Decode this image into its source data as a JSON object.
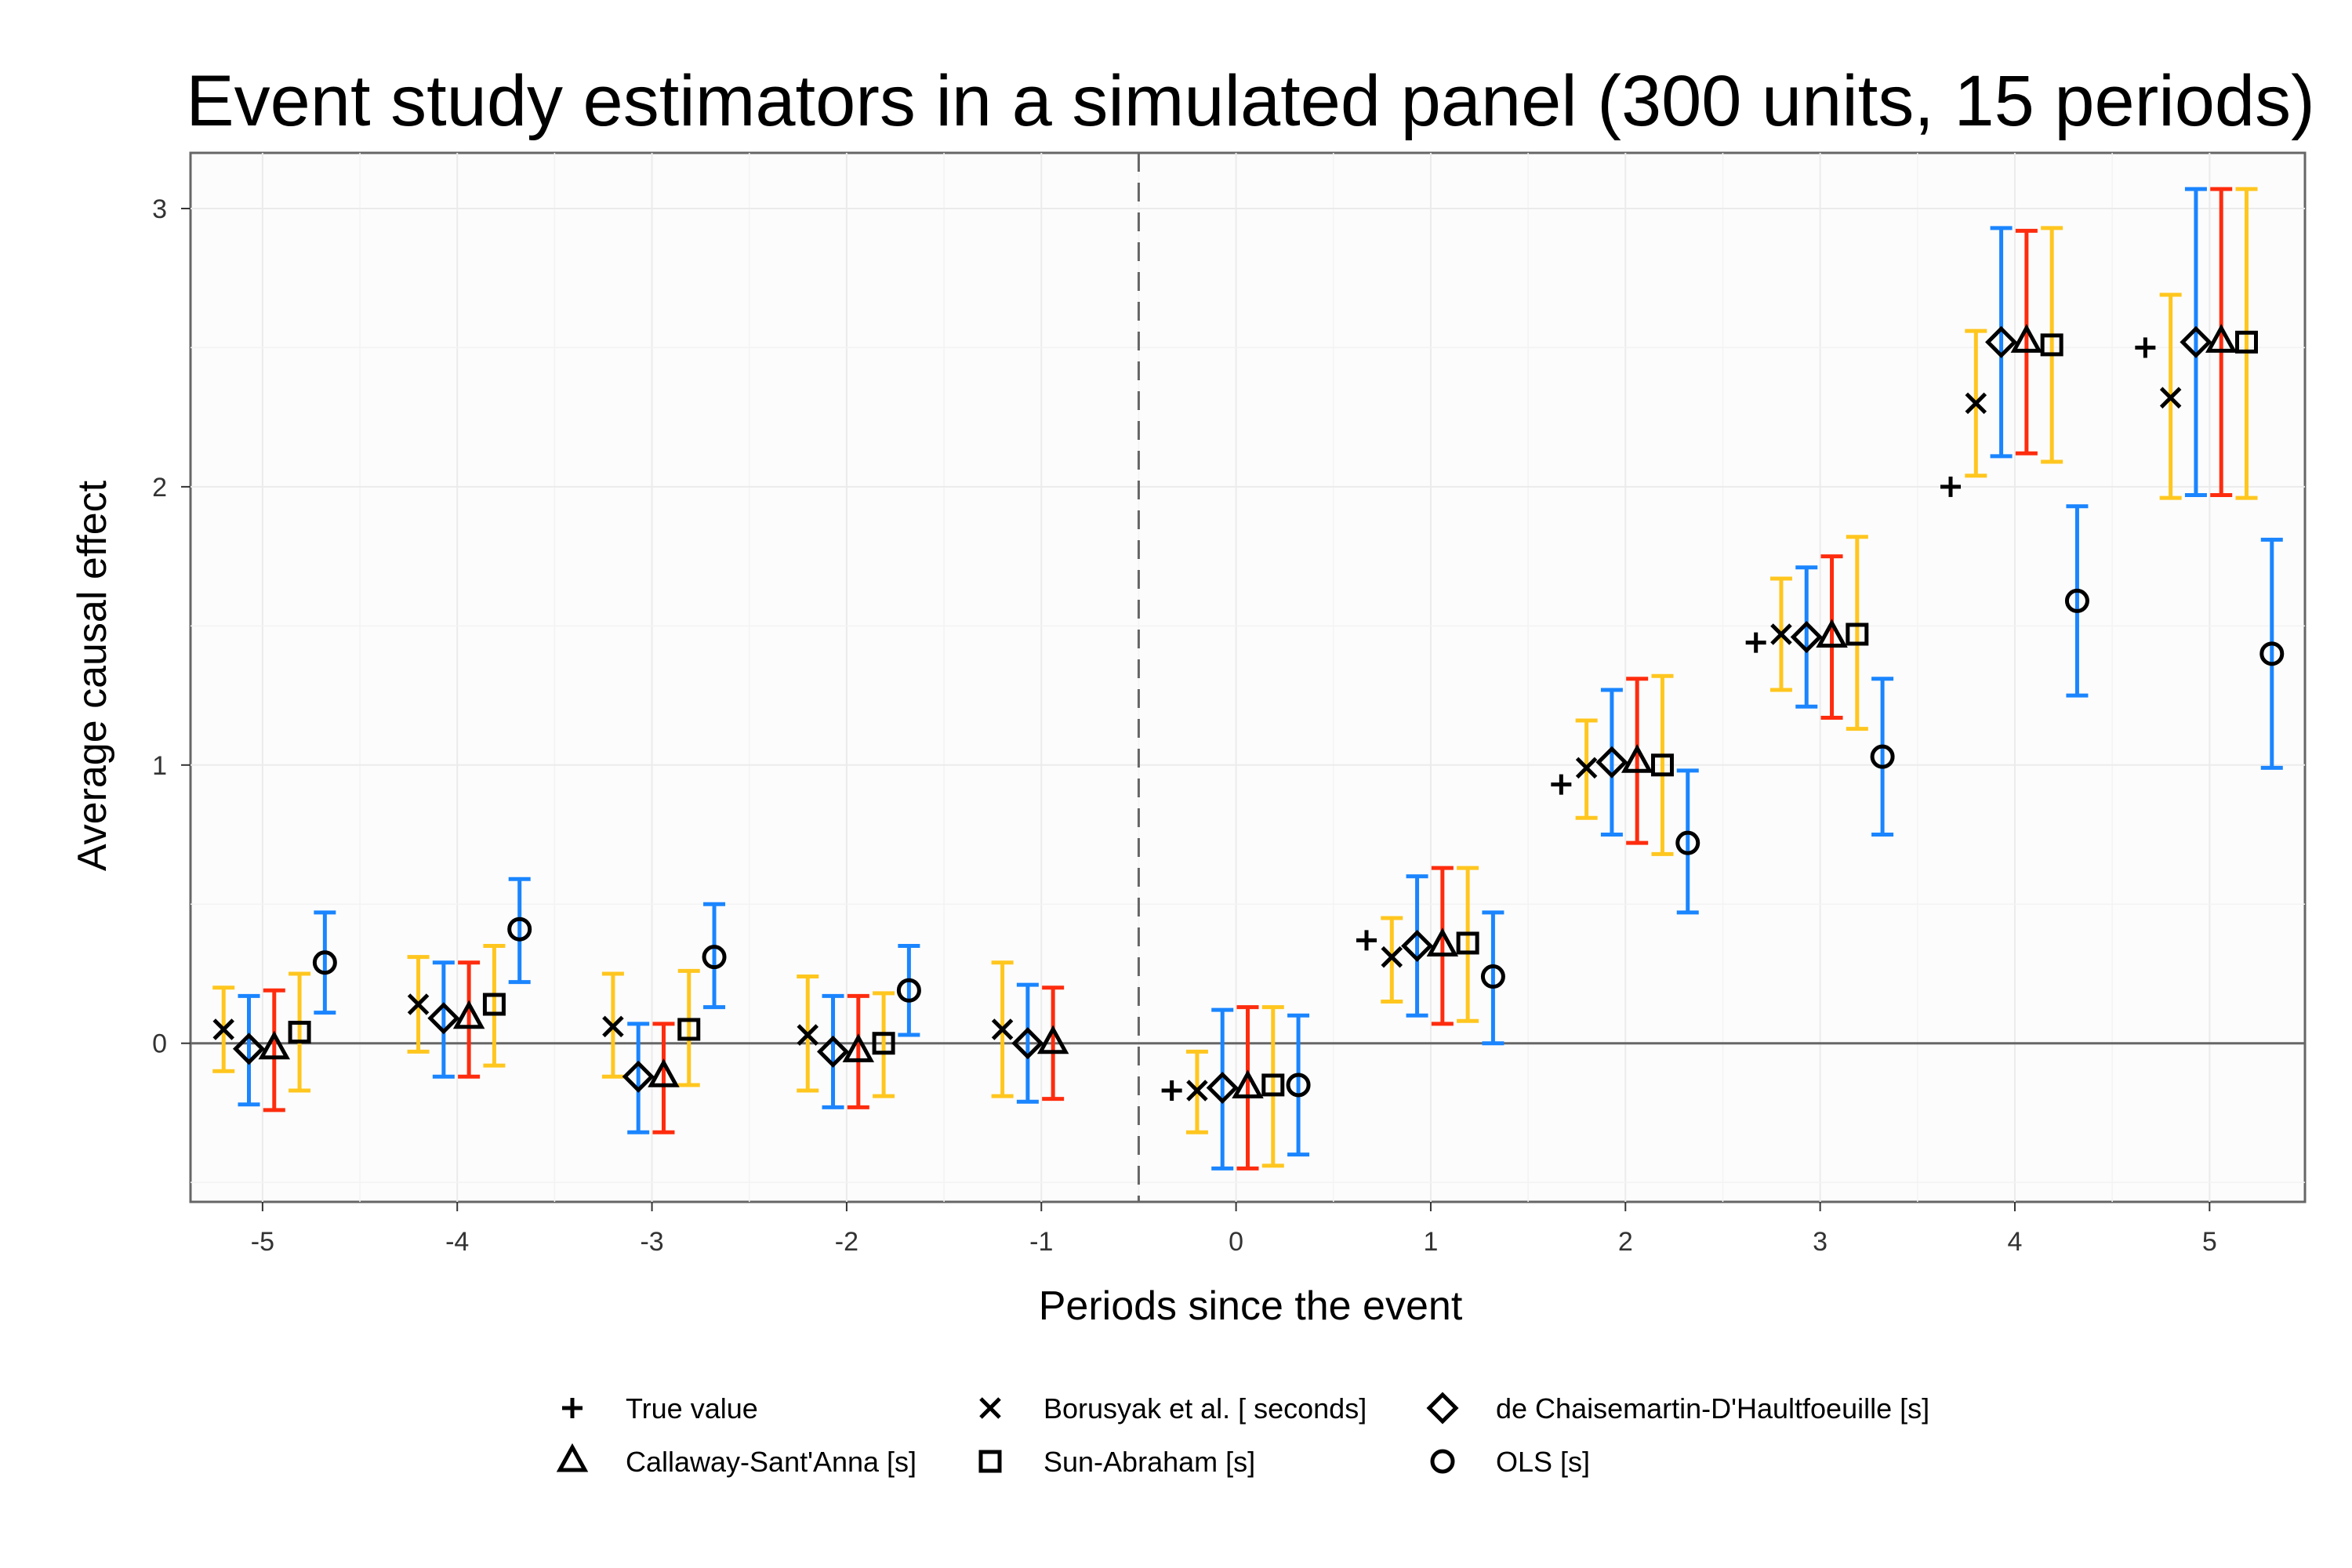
{
  "chart_data": {
    "type": "scatter",
    "title": "Event study estimators in a simulated panel (300 units, 15 periods)",
    "xlabel": "Periods since the event",
    "ylabel": "Average causal effect",
    "x_ticks": [
      -5,
      -4,
      -3,
      -2,
      -1,
      0,
      1,
      2,
      3,
      4,
      5
    ],
    "y_ticks": [
      0,
      1,
      2,
      3
    ],
    "xlim": [
      -5.37,
      5.49
    ],
    "ylim": [
      -0.57,
      3.2
    ],
    "event_line_x": -0.5,
    "zero_line_y": 0,
    "legend_position": "bottom",
    "series": [
      {
        "name": "True value",
        "marker": "plus",
        "color": "#000000",
        "offset": -0.33,
        "points": [
          {
            "x": 0,
            "y": -0.17
          },
          {
            "x": 1,
            "y": 0.37
          },
          {
            "x": 2,
            "y": 0.93
          },
          {
            "x": 3,
            "y": 1.44
          },
          {
            "x": 4,
            "y": 2.0
          },
          {
            "x": 5,
            "y": 2.5
          }
        ]
      },
      {
        "name": "Borusyak et al. [ seconds]",
        "marker": "x",
        "color": "#FFC61E",
        "offset": -0.2,
        "points": [
          {
            "x": -5,
            "y": 0.05,
            "lo": -0.1,
            "hi": 0.2
          },
          {
            "x": -4,
            "y": 0.14,
            "lo": -0.03,
            "hi": 0.31
          },
          {
            "x": -3,
            "y": 0.06,
            "lo": -0.12,
            "hi": 0.25
          },
          {
            "x": -2,
            "y": 0.03,
            "lo": -0.17,
            "hi": 0.24
          },
          {
            "x": -1,
            "y": 0.05,
            "lo": -0.19,
            "hi": 0.29
          },
          {
            "x": 0,
            "y": -0.17,
            "lo": -0.32,
            "hi": -0.03
          },
          {
            "x": 1,
            "y": 0.31,
            "lo": 0.15,
            "hi": 0.45
          },
          {
            "x": 2,
            "y": 0.99,
            "lo": 0.81,
            "hi": 1.16
          },
          {
            "x": 3,
            "y": 1.47,
            "lo": 1.27,
            "hi": 1.67
          },
          {
            "x": 4,
            "y": 2.3,
            "lo": 2.04,
            "hi": 2.56
          },
          {
            "x": 5,
            "y": 2.32,
            "lo": 1.96,
            "hi": 2.69
          }
        ]
      },
      {
        "name": "de Chaisemartin-D'Haultfoeuille [s]",
        "marker": "diamond",
        "color": "#1A85FF",
        "offset": -0.07,
        "points": [
          {
            "x": -5,
            "y": -0.02,
            "lo": -0.22,
            "hi": 0.17
          },
          {
            "x": -4,
            "y": 0.09,
            "lo": -0.12,
            "hi": 0.29
          },
          {
            "x": -3,
            "y": -0.12,
            "lo": -0.32,
            "hi": 0.07
          },
          {
            "x": -2,
            "y": -0.03,
            "lo": -0.23,
            "hi": 0.17
          },
          {
            "x": -1,
            "y": 0.0,
            "lo": -0.21,
            "hi": 0.21
          },
          {
            "x": 0,
            "y": -0.16,
            "lo": -0.45,
            "hi": 0.12
          },
          {
            "x": 1,
            "y": 0.35,
            "lo": 0.1,
            "hi": 0.6
          },
          {
            "x": 2,
            "y": 1.01,
            "lo": 0.75,
            "hi": 1.27
          },
          {
            "x": 3,
            "y": 1.46,
            "lo": 1.21,
            "hi": 1.71
          },
          {
            "x": 4,
            "y": 2.52,
            "lo": 2.11,
            "hi": 2.93
          },
          {
            "x": 5,
            "y": 2.52,
            "lo": 1.97,
            "hi": 3.07
          }
        ]
      },
      {
        "name": "Callaway-Sant'Anna [s]",
        "marker": "triangle",
        "color": "#FE2C0E",
        "offset": 0.06,
        "points": [
          {
            "x": -5,
            "y": -0.02,
            "lo": -0.24,
            "hi": 0.19
          },
          {
            "x": -4,
            "y": 0.09,
            "lo": -0.12,
            "hi": 0.29
          },
          {
            "x": -3,
            "y": -0.12,
            "lo": -0.32,
            "hi": 0.07
          },
          {
            "x": -2,
            "y": -0.03,
            "lo": -0.23,
            "hi": 0.17
          },
          {
            "x": -1,
            "y": 0.0,
            "lo": -0.2,
            "hi": 0.2
          },
          {
            "x": 0,
            "y": -0.16,
            "lo": -0.45,
            "hi": 0.13
          },
          {
            "x": 1,
            "y": 0.35,
            "lo": 0.07,
            "hi": 0.63
          },
          {
            "x": 2,
            "y": 1.01,
            "lo": 0.72,
            "hi": 1.31
          },
          {
            "x": 3,
            "y": 1.46,
            "lo": 1.17,
            "hi": 1.75
          },
          {
            "x": 4,
            "y": 2.52,
            "lo": 2.12,
            "hi": 2.92
          },
          {
            "x": 5,
            "y": 2.52,
            "lo": 1.97,
            "hi": 3.07
          }
        ]
      },
      {
        "name": "Sun-Abraham [s]",
        "marker": "square",
        "color": "#FFC61E",
        "offset": 0.19,
        "points": [
          {
            "x": -5,
            "y": 0.04,
            "lo": -0.17,
            "hi": 0.25
          },
          {
            "x": -4,
            "y": 0.14,
            "lo": -0.08,
            "hi": 0.35
          },
          {
            "x": -3,
            "y": 0.05,
            "lo": -0.15,
            "hi": 0.26
          },
          {
            "x": -2,
            "y": 0.0,
            "lo": -0.19,
            "hi": 0.18
          },
          {
            "x": 0,
            "y": -0.15,
            "lo": -0.44,
            "hi": 0.13
          },
          {
            "x": 1,
            "y": 0.36,
            "lo": 0.08,
            "hi": 0.63
          },
          {
            "x": 2,
            "y": 1.0,
            "lo": 0.68,
            "hi": 1.32
          },
          {
            "x": 3,
            "y": 1.47,
            "lo": 1.13,
            "hi": 1.82
          },
          {
            "x": 4,
            "y": 2.51,
            "lo": 2.09,
            "hi": 2.93
          },
          {
            "x": 5,
            "y": 2.52,
            "lo": 1.96,
            "hi": 3.07
          }
        ]
      },
      {
        "name": "OLS [s]",
        "marker": "circle",
        "color": "#1A85FF",
        "offset": 0.32,
        "points": [
          {
            "x": -5,
            "y": 0.29,
            "lo": 0.11,
            "hi": 0.47
          },
          {
            "x": -4,
            "y": 0.41,
            "lo": 0.22,
            "hi": 0.59
          },
          {
            "x": -3,
            "y": 0.31,
            "lo": 0.13,
            "hi": 0.5
          },
          {
            "x": -2,
            "y": 0.19,
            "lo": 0.03,
            "hi": 0.35
          },
          {
            "x": 0,
            "y": -0.15,
            "lo": -0.4,
            "hi": 0.1
          },
          {
            "x": 1,
            "y": 0.24,
            "lo": 0.0,
            "hi": 0.47
          },
          {
            "x": 2,
            "y": 0.72,
            "lo": 0.47,
            "hi": 0.98
          },
          {
            "x": 3,
            "y": 1.03,
            "lo": 0.75,
            "hi": 1.31
          },
          {
            "x": 4,
            "y": 1.59,
            "lo": 1.25,
            "hi": 1.93
          },
          {
            "x": 5,
            "y": 1.4,
            "lo": 0.99,
            "hi": 1.81
          }
        ]
      }
    ]
  }
}
